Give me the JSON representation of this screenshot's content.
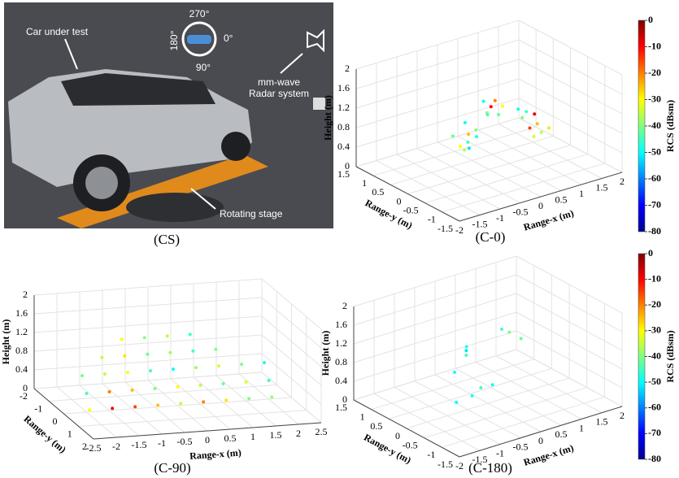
{
  "photo": {
    "car_label": "Car under test",
    "angle_top": "270°",
    "angle_left": "180°",
    "angle_right": "0°",
    "angle_bottom": "90°",
    "radar_label_1": "mm-wave",
    "radar_label_2": "Radar system",
    "stage_label": "Rotating stage",
    "caption": "(CS)"
  },
  "chart_data": [
    {
      "type": "scatter3d",
      "caption": "(C-0)",
      "xlabel": "Range-x (m)",
      "ylabel": "Range-y (m)",
      "zlabel": "Height (m)",
      "xlim": [
        -2,
        2
      ],
      "ylim": [
        -1.5,
        1.5
      ],
      "zlim": [
        0,
        2
      ],
      "xticks": [
        -2,
        -1.5,
        -1,
        -0.5,
        0,
        0.5,
        1,
        1.5,
        2
      ],
      "yticks": [
        -1.5,
        -1,
        -0.5,
        0,
        0.5,
        1,
        1.5
      ],
      "zticks": [
        0,
        0.4,
        0.8,
        1.2,
        1.6,
        2
      ],
      "colorbar": {
        "label": "RCS (dBsm)",
        "colormap": "jet",
        "lim": [
          -80,
          0
        ],
        "ticks": [
          0,
          -10,
          -20,
          -30,
          -40,
          -50,
          -60,
          -70,
          -80
        ]
      },
      "x": [
        -0.2,
        -0.1,
        0,
        0.1,
        0,
        -0.1,
        0.2,
        0.1,
        -0.3,
        0.2,
        0.3,
        0.4,
        0.3,
        0.5,
        0.2,
        0.4,
        1.0,
        1.1,
        0.9,
        1.2,
        1.0,
        1.3,
        0.8,
        1.1,
        1.2
      ],
      "y": [
        0.6,
        0.5,
        0.6,
        0.5,
        0.7,
        0.6,
        0.6,
        0.7,
        0.7,
        0.3,
        0.3,
        0.3,
        0.4,
        0.2,
        0.4,
        0.2,
        0,
        -0.1,
        0.1,
        -0.1,
        0.1,
        -0.2,
        0.1,
        0,
        0.1
      ],
      "z": [
        0.3,
        0.4,
        0.5,
        0.6,
        0.7,
        0.2,
        0.4,
        0.15,
        0.5,
        1.0,
        1.1,
        1.2,
        0.9,
        1.1,
        1.2,
        0.95,
        0.6,
        0.7,
        0.8,
        0.5,
        0.9,
        0.6,
        1.0,
        0.4,
        0.8
      ],
      "rcs": [
        -30,
        -45,
        -25,
        -40,
        -50,
        -35,
        -48,
        -52,
        -42,
        -38,
        -10,
        -20,
        -45,
        -30,
        -50,
        -42,
        -15,
        -25,
        -40,
        -35,
        -45,
        -28,
        -48,
        -33,
        -8
      ]
    },
    {
      "type": "scatter3d",
      "caption": "(C-90)",
      "xlabel": "Range-x (m)",
      "ylabel": "Range-y (m)",
      "zlabel": "Height (m)",
      "xlim": [
        -2.5,
        2.5
      ],
      "ylim": [
        -2,
        2
      ],
      "zlim": [
        0,
        2
      ],
      "xticks": [
        -2.5,
        -2,
        -1.5,
        -1,
        -0.5,
        0,
        0.5,
        1,
        1.5,
        2,
        2.5
      ],
      "yticks": [
        -2,
        -1,
        0,
        1,
        2
      ],
      "zticks": [
        0,
        0.4,
        0.8,
        1.2,
        1.6,
        2
      ],
      "x": [
        -2,
        -1.5,
        -1,
        -0.5,
        0,
        0.5,
        1,
        1.5,
        2,
        -2,
        -1.5,
        -1,
        -0.5,
        0,
        0.5,
        1,
        1.5,
        2,
        -2,
        -1.5,
        -1,
        -0.5,
        0,
        0.5,
        1,
        1.5,
        2,
        -1.5,
        -1,
        -0.5,
        0,
        0.5,
        1,
        -1,
        -0.5,
        0,
        0.5
      ],
      "y": [
        0.2,
        0.2,
        0.2,
        0.2,
        0.2,
        0.2,
        0.2,
        0.2,
        0.2,
        0,
        0,
        0,
        0,
        0,
        0,
        0,
        0,
        0,
        -0.3,
        -0.3,
        -0.3,
        -0.3,
        -0.3,
        -0.3,
        -0.3,
        -0.3,
        -0.3,
        -0.5,
        -0.5,
        -0.5,
        -0.5,
        -0.5,
        -0.5,
        -0.7,
        -0.7,
        -0.7,
        -0.7
      ],
      "z": [
        0.1,
        0.1,
        0.1,
        0.1,
        0.1,
        0.1,
        0.1,
        0.1,
        0.1,
        0.4,
        0.4,
        0.4,
        0.4,
        0.4,
        0.4,
        0.4,
        0.4,
        0.4,
        0.7,
        0.7,
        0.7,
        0.7,
        0.7,
        0.7,
        0.7,
        0.7,
        0.7,
        1.0,
        1.0,
        1.0,
        1.0,
        1.0,
        1.0,
        1.3,
        1.3,
        1.3,
        1.3
      ],
      "rcs": [
        -30,
        -10,
        -15,
        -25,
        -35,
        -20,
        -28,
        -40,
        -38,
        -45,
        -20,
        -25,
        -40,
        -30,
        -35,
        -42,
        -32,
        -45,
        -40,
        -35,
        -30,
        -45,
        -50,
        -38,
        -33,
        -40,
        -48,
        -35,
        -28,
        -42,
        -38,
        -45,
        -40,
        -30,
        -40,
        -35,
        -45
      ]
    },
    {
      "type": "scatter3d",
      "caption": "(C-180)",
      "xlabel": "Range-x (m)",
      "ylabel": "Range-y (m)",
      "zlabel": "Height (m)",
      "xlim": [
        -2,
        2
      ],
      "ylim": [
        -1.5,
        1.5
      ],
      "zlim": [
        0,
        2
      ],
      "xticks": [
        -2,
        -1.5,
        -1,
        -0.5,
        0,
        0.5,
        1,
        1.5,
        2
      ],
      "yticks": [
        -1.5,
        -1,
        -0.5,
        0,
        0.5,
        1,
        1.5
      ],
      "zticks": [
        0,
        0.4,
        0.8,
        1.2,
        1.6,
        2
      ],
      "colorbar": {
        "label": "RCS (dBsm)",
        "colormap": "jet",
        "lim": [
          -80,
          0
        ],
        "ticks": [
          0,
          -10,
          -20,
          -30,
          -40,
          -50,
          -60,
          -70,
          -80
        ]
      },
      "x": [
        -0.6,
        -0.3,
        0,
        0.2,
        -0.3,
        -0.1,
        -0.1,
        -0.05,
        0.6,
        0.7,
        0.9
      ],
      "y": [
        0.2,
        0.1,
        0.2,
        0.1,
        0.6,
        0.5,
        0.5,
        0.55,
        0.3,
        0.2,
        0.1
      ],
      "z": [
        0.1,
        0.2,
        0.25,
        0.3,
        0.5,
        0.85,
        0.95,
        1.0,
        1.3,
        1.25,
        1.1
      ],
      "rcs": [
        -50,
        -48,
        -45,
        -50,
        -48,
        -45,
        -52,
        -47,
        -45,
        -40,
        -42
      ]
    }
  ]
}
